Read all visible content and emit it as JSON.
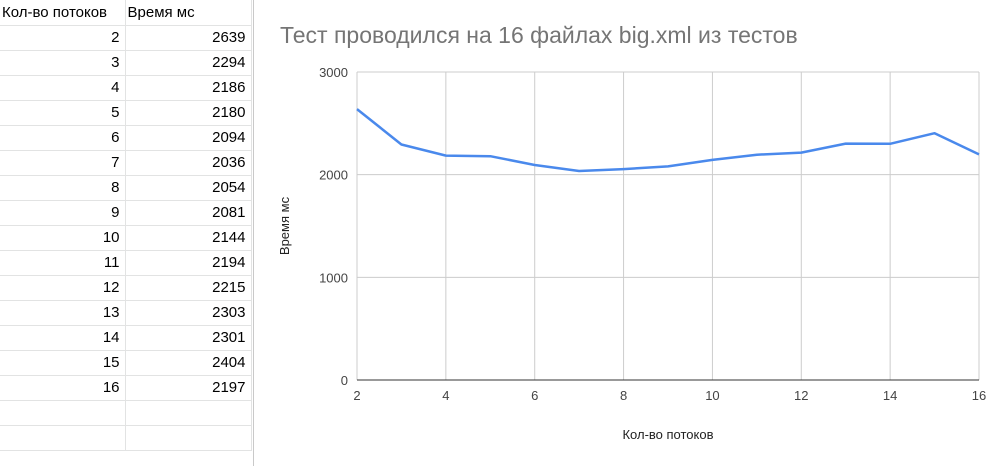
{
  "table": {
    "headers": [
      "Кол-во потоков",
      "Время мс"
    ],
    "rows": [
      [
        "2",
        "2639"
      ],
      [
        "3",
        "2294"
      ],
      [
        "4",
        "2186"
      ],
      [
        "5",
        "2180"
      ],
      [
        "6",
        "2094"
      ],
      [
        "7",
        "2036"
      ],
      [
        "8",
        "2054"
      ],
      [
        "9",
        "2081"
      ],
      [
        "10",
        "2144"
      ],
      [
        "11",
        "2194"
      ],
      [
        "12",
        "2215"
      ],
      [
        "13",
        "2303"
      ],
      [
        "14",
        "2301"
      ],
      [
        "15",
        "2404"
      ],
      [
        "16",
        "2197"
      ]
    ]
  },
  "chart_data": {
    "type": "line",
    "title": "Тест проводился на 16 файлах big.xml из тестов",
    "xlabel": "Кол-во потоков",
    "ylabel": "Время мс",
    "x": [
      2,
      3,
      4,
      5,
      6,
      7,
      8,
      9,
      10,
      11,
      12,
      13,
      14,
      15,
      16
    ],
    "series": [
      {
        "values": [
          2639,
          2294,
          2186,
          2180,
          2094,
          2036,
          2054,
          2081,
          2144,
          2194,
          2215,
          2303,
          2301,
          2404,
          2197
        ]
      }
    ],
    "xlim": [
      2,
      16
    ],
    "ylim": [
      0,
      3000
    ],
    "xticks": [
      "2",
      "4",
      "6",
      "8",
      "10",
      "12",
      "14",
      "16"
    ],
    "yticks": [
      "0",
      "1000",
      "2000",
      "3000"
    ],
    "grid": true,
    "colors": {
      "line": "#4a89ec",
      "grid": "#cccccc",
      "axis": "#333333"
    }
  }
}
